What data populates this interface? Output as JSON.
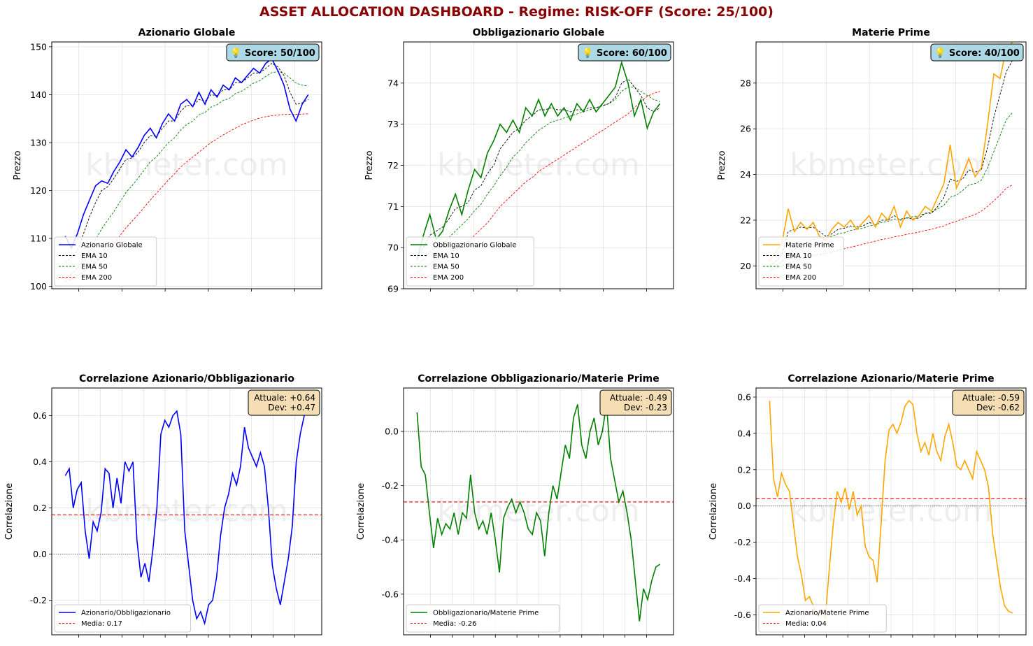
{
  "title": "ASSET ALLOCATION DASHBOARD - Regime: RISK-OFF  (Score: 25/100)",
  "watermark": "kbmeter.com",
  "colors": {
    "title": "#8b0000",
    "ema10": "#000000",
    "ema50": "#008000",
    "ema200": "#ff0000",
    "badge_bg": "#add8e6",
    "corr_box_bg": "#f5deb3"
  },
  "chart_data": [
    {
      "id": "equity",
      "type": "line",
      "title": "Azionario Globale",
      "ylabel": "Prezzo",
      "ylim": [
        99.5,
        151
      ],
      "yticks": [
        100,
        110,
        120,
        130,
        140,
        150
      ],
      "grid": true,
      "badge": "💡 Score: 50/100",
      "legend_position": "lower-left",
      "series": [
        {
          "name": "Azionario Globale",
          "color": "#0000ff",
          "style": "solid",
          "values": [
            110.5,
            108,
            111,
            115,
            118,
            121,
            122,
            121.5,
            124,
            126,
            128.5,
            127,
            129,
            131.5,
            133,
            131,
            134,
            136,
            134.5,
            138,
            139,
            137.5,
            140.5,
            138,
            141,
            139.5,
            142,
            141,
            143.5,
            142.5,
            144,
            145.5,
            144.5,
            146.5,
            147.5,
            145,
            142,
            137,
            134.5,
            138,
            140
          ]
        },
        {
          "name": "EMA 10",
          "color": "#000000",
          "style": "dashed",
          "values": [
            105,
            106,
            107.5,
            111,
            114.5,
            117.5,
            120,
            120.8,
            122.5,
            124.5,
            126.5,
            126.8,
            128,
            130,
            131.5,
            131.3,
            133,
            134.5,
            134.5,
            136.5,
            137.8,
            137.6,
            139,
            138.6,
            140,
            139.8,
            141,
            141,
            142.5,
            142.5,
            143.5,
            144.5,
            144.5,
            145.5,
            146.5,
            145.8,
            144,
            140.5,
            138,
            138.3,
            139
          ]
        },
        {
          "name": "EMA 50",
          "color": "#008000",
          "style": "dashed",
          "values": [
            101.5,
            102.5,
            103.8,
            105.5,
            107.5,
            109.8,
            112,
            113.8,
            115.6,
            117.6,
            119.6,
            121,
            122.6,
            124.3,
            126,
            127,
            128.5,
            130,
            131,
            132.6,
            133.8,
            134.5,
            135.8,
            136.3,
            137.4,
            137.9,
            138.8,
            139.2,
            140.2,
            140.7,
            141.5,
            142.4,
            142.9,
            143.8,
            144.6,
            144.8,
            144.5,
            143.5,
            142.4,
            142,
            141.8
          ]
        },
        {
          "name": "EMA 200",
          "color": "#ff0000",
          "style": "dashed",
          "values": [
            101,
            101.5,
            102.2,
            103,
            104,
            105,
            106.3,
            107.6,
            109,
            110.6,
            112.2,
            113.6,
            115,
            116.5,
            118,
            119.4,
            120.8,
            122.2,
            123.5,
            124.9,
            126,
            127,
            128,
            129,
            130,
            130.8,
            131.6,
            132.3,
            133,
            133.7,
            134.2,
            134.7,
            135.1,
            135.4,
            135.6,
            135.75,
            135.85,
            135.9,
            135.9,
            135.95,
            136
          ]
        }
      ]
    },
    {
      "id": "bond",
      "type": "line",
      "title": "Obbligazionario Globale",
      "ylabel": "Prezzo",
      "ylim": [
        69,
        75
      ],
      "yticks": [
        69,
        70,
        71,
        72,
        73,
        74
      ],
      "grid": true,
      "badge": "💡 Score: 60/100",
      "legend_position": "lower-left",
      "series": [
        {
          "name": "Obbligazionario Globale",
          "color": "#008000",
          "style": "solid",
          "values": [
            69.7,
            70.3,
            70.8,
            70.2,
            70.4,
            70.9,
            71.3,
            70.8,
            71.4,
            71.9,
            71.7,
            72.3,
            72.6,
            73,
            72.8,
            73.1,
            72.8,
            73.4,
            73.2,
            73.6,
            73.2,
            73.5,
            73.2,
            73.4,
            73.1,
            73.5,
            73.3,
            73.6,
            73.3,
            73.5,
            73.7,
            73.9,
            74.5,
            74,
            73.2,
            73.6,
            72.9,
            73.3,
            73.5
          ]
        },
        {
          "name": "EMA 10",
          "color": "#000000",
          "style": "dashed",
          "values": [
            69.8,
            70,
            70.3,
            70.4,
            70.5,
            70.7,
            70.95,
            71,
            71.1,
            71.4,
            71.5,
            71.8,
            72,
            72.4,
            72.6,
            72.8,
            72.9,
            73.1,
            73.2,
            73.35,
            73.35,
            73.4,
            73.35,
            73.35,
            73.3,
            73.35,
            73.35,
            73.4,
            73.4,
            73.45,
            73.5,
            73.65,
            74,
            74.1,
            73.9,
            73.7,
            73.4,
            73.3,
            73.4
          ]
        },
        {
          "name": "EMA 50",
          "color": "#008000",
          "style": "dashed",
          "values": [
            69.6,
            69.7,
            69.9,
            70,
            70.1,
            70.25,
            70.4,
            70.55,
            70.7,
            70.9,
            71.05,
            71.3,
            71.5,
            71.75,
            71.95,
            72.2,
            72.35,
            72.55,
            72.7,
            72.85,
            72.95,
            73.05,
            73.1,
            73.15,
            73.2,
            73.25,
            73.3,
            73.35,
            73.4,
            73.45,
            73.5,
            73.6,
            73.8,
            73.9,
            73.9,
            73.8,
            73.7,
            73.6,
            73.55
          ]
        },
        {
          "name": "EMA 200",
          "color": "#ff0000",
          "style": "dashed",
          "values": [
            69.4,
            69.5,
            69.6,
            69.7,
            69.75,
            69.85,
            69.95,
            70.05,
            70.15,
            70.3,
            70.45,
            70.6,
            70.8,
            71,
            71.15,
            71.3,
            71.45,
            71.6,
            71.7,
            71.85,
            71.95,
            72.05,
            72.15,
            72.25,
            72.35,
            72.45,
            72.55,
            72.65,
            72.75,
            72.85,
            72.95,
            73.05,
            73.15,
            73.25,
            73.4,
            73.55,
            73.68,
            73.75,
            73.8
          ]
        }
      ]
    },
    {
      "id": "commodity",
      "type": "line",
      "title": "Materie Prime",
      "ylabel": "Prezzo",
      "ylim": [
        19,
        29.8
      ],
      "yticks": [
        20,
        22,
        24,
        26,
        28
      ],
      "grid": true,
      "badge": "💡 Score: 40/100",
      "legend_position": "lower-left",
      "series": [
        {
          "name": "Materie Prime",
          "color": "#ffa500",
          "style": "solid",
          "values": [
            20.2,
            20.6,
            21,
            22.5,
            21.5,
            21.9,
            21.6,
            21.9,
            21.3,
            21.1,
            21.6,
            21.9,
            21.7,
            22,
            21.6,
            21.9,
            22.2,
            21.7,
            22.3,
            22,
            22.6,
            21.7,
            22.4,
            22,
            22.2,
            22.6,
            22.4,
            23,
            23.6,
            25.3,
            23.4,
            24,
            24.7,
            23.9,
            24.3,
            26.2,
            28.4,
            28.2,
            29.5,
            29.8
          ]
        },
        {
          "name": "EMA 10",
          "color": "#000000",
          "style": "dashed",
          "values": [
            20,
            20.2,
            20.5,
            21.5,
            21.6,
            21.7,
            21.65,
            21.7,
            21.5,
            21.3,
            21.4,
            21.6,
            21.65,
            21.75,
            21.7,
            21.75,
            21.9,
            21.8,
            22,
            22,
            22.2,
            22,
            22.1,
            22.05,
            22.1,
            22.3,
            22.3,
            22.6,
            23,
            23.8,
            23.7,
            23.8,
            24.2,
            24.1,
            24.2,
            25.2,
            26.5,
            27.5,
            28.5,
            29
          ]
        },
        {
          "name": "EMA 50",
          "color": "#008000",
          "style": "dashed",
          "values": [
            19.9,
            20,
            20.2,
            20.5,
            20.7,
            20.9,
            21,
            21.15,
            21.2,
            21.25,
            21.3,
            21.4,
            21.45,
            21.55,
            21.6,
            21.65,
            21.75,
            21.8,
            21.9,
            21.95,
            22.05,
            22.05,
            22.1,
            22.15,
            22.2,
            22.3,
            22.35,
            22.5,
            22.65,
            23,
            23.1,
            23.3,
            23.55,
            23.6,
            23.75,
            24.3,
            25,
            25.7,
            26.4,
            26.7
          ]
        },
        {
          "name": "EMA 200",
          "color": "#ff0000",
          "style": "dashed",
          "values": [
            19.8,
            19.9,
            20,
            20.1,
            20.2,
            20.3,
            20.38,
            20.45,
            20.5,
            20.55,
            20.6,
            20.68,
            20.75,
            20.82,
            20.88,
            20.95,
            21.02,
            21.08,
            21.15,
            21.2,
            21.27,
            21.32,
            21.38,
            21.43,
            21.48,
            21.55,
            21.6,
            21.68,
            21.75,
            21.87,
            21.95,
            22.05,
            22.15,
            22.25,
            22.4,
            22.6,
            22.85,
            23.1,
            23.4,
            23.55
          ]
        }
      ]
    },
    {
      "id": "corr_eq_bond",
      "type": "line",
      "title": "Correlazione Azionario/Obbligazionario",
      "ylabel": "Correlazione",
      "ylim": [
        -0.35,
        0.72
      ],
      "yticks": [
        -0.2,
        0.0,
        0.2,
        0.4,
        0.6
      ],
      "grid": true,
      "zero_line": true,
      "mean": 0.17,
      "info_box": [
        "Attuale: +0.64",
        "Dev: +0.47"
      ],
      "legend_position": "lower-left",
      "series": [
        {
          "name": "Azionario/Obbligazionario",
          "color": "#0000ff",
          "style": "solid",
          "values": [
            0.34,
            0.37,
            0.2,
            0.28,
            0.31,
            0.1,
            -0.02,
            0.14,
            0.1,
            0.18,
            0.37,
            0.35,
            0.2,
            0.33,
            0.22,
            0.4,
            0.36,
            0.4,
            0.06,
            -0.1,
            -0.04,
            -0.12,
            0.02,
            0.2,
            0.52,
            0.58,
            0.55,
            0.6,
            0.62,
            0.52,
            0.1,
            -0.05,
            -0.2,
            -0.28,
            -0.25,
            -0.3,
            -0.22,
            -0.2,
            -0.1,
            0.08,
            0.2,
            0.26,
            0.35,
            0.3,
            0.38,
            0.55,
            0.46,
            0.42,
            0.38,
            0.44,
            0.38,
            0.2,
            -0.05,
            -0.15,
            -0.22,
            -0.12,
            -0.02,
            0.12,
            0.4,
            0.52,
            0.6,
            0.64
          ]
        },
        {
          "name": "Media: 0.17",
          "color": "#ff0000",
          "style": "dashed",
          "values": []
        }
      ]
    },
    {
      "id": "corr_bond_com",
      "type": "line",
      "title": "Correlazione Obbligazionario/Materie Prime",
      "ylabel": "Correlazione",
      "ylim": [
        -0.75,
        0.16
      ],
      "yticks": [
        -0.6,
        -0.4,
        -0.2,
        0.0
      ],
      "grid": true,
      "zero_line": true,
      "mean": -0.26,
      "info_box": [
        "Attuale: -0.49",
        "Dev: -0.23"
      ],
      "legend_position": "lower-left",
      "series": [
        {
          "name": "Obbligazionario/Materie Prime",
          "color": "#008000",
          "style": "solid",
          "values": [
            0.07,
            -0.13,
            -0.16,
            -0.3,
            -0.43,
            -0.32,
            -0.38,
            -0.34,
            -0.36,
            -0.3,
            -0.38,
            -0.3,
            -0.32,
            -0.16,
            -0.3,
            -0.36,
            -0.33,
            -0.38,
            -0.3,
            -0.4,
            -0.52,
            -0.32,
            -0.28,
            -0.25,
            -0.3,
            -0.26,
            -0.3,
            -0.36,
            -0.38,
            -0.3,
            -0.33,
            -0.46,
            -0.3,
            -0.2,
            -0.25,
            -0.15,
            -0.05,
            -0.1,
            0.05,
            0.1,
            -0.05,
            -0.1,
            0.0,
            0.05,
            -0.05,
            0.0,
            0.1,
            -0.1,
            -0.18,
            -0.26,
            -0.22,
            -0.3,
            -0.4,
            -0.55,
            -0.7,
            -0.58,
            -0.62,
            -0.55,
            -0.5,
            -0.49
          ]
        },
        {
          "name": "Media: -0.26",
          "color": "#ff0000",
          "style": "dashed",
          "values": []
        }
      ]
    },
    {
      "id": "corr_eq_com",
      "type": "line",
      "title": "Correlazione Azionario/Materie Prime",
      "ylabel": "Correlazione",
      "ylim": [
        -0.71,
        0.65
      ],
      "yticks": [
        -0.6,
        -0.4,
        -0.2,
        0.0,
        0.2,
        0.4,
        0.6
      ],
      "grid": true,
      "zero_line": true,
      "mean": 0.04,
      "info_box": [
        "Attuale: -0.59",
        "Dev: -0.62"
      ],
      "legend_position": "lower-left",
      "series": [
        {
          "name": "Azionario/Materie Prime",
          "color": "#ffa500",
          "style": "solid",
          "values": [
            0.58,
            0.15,
            0.05,
            0.18,
            0.12,
            0.08,
            -0.1,
            -0.28,
            -0.38,
            -0.52,
            -0.5,
            -0.55,
            -0.6,
            -0.58,
            -0.62,
            -0.35,
            -0.1,
            0.08,
            0.02,
            0.1,
            -0.02,
            0.08,
            -0.05,
            0.0,
            -0.22,
            -0.28,
            -0.3,
            -0.42,
            -0.1,
            0.25,
            0.42,
            0.45,
            0.4,
            0.46,
            0.55,
            0.58,
            0.56,
            0.4,
            0.3,
            0.35,
            0.28,
            0.4,
            0.3,
            0.25,
            0.38,
            0.45,
            0.35,
            0.22,
            0.2,
            0.25,
            0.2,
            0.15,
            0.3,
            0.25,
            0.2,
            0.1,
            -0.15,
            -0.3,
            -0.45,
            -0.55,
            -0.58,
            -0.59
          ]
        },
        {
          "name": "Media: 0.04",
          "color": "#ff0000",
          "style": "dashed",
          "values": []
        }
      ]
    }
  ]
}
